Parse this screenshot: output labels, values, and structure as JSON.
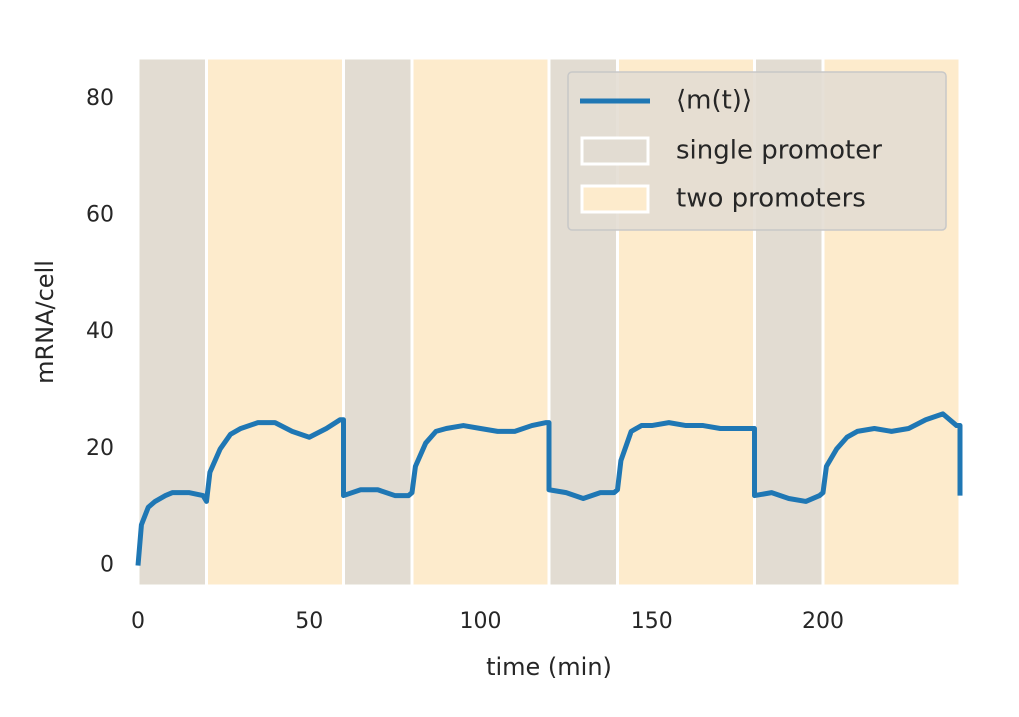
{
  "chart_data": {
    "type": "line",
    "xlabel": "time (min)",
    "ylabel": "mRNA/cell",
    "xlim": [
      0,
      240
    ],
    "ylim": [
      -3.5,
      87
    ],
    "xticks": [
      0,
      50,
      100,
      150,
      200
    ],
    "yticks": [
      0,
      20,
      40,
      60,
      80
    ],
    "legend": "upper right",
    "spans": [
      {
        "name": "single promoter",
        "color": "#e2dcd2",
        "intervals": [
          [
            0,
            20
          ],
          [
            60,
            80
          ],
          [
            120,
            140
          ],
          [
            180,
            200
          ]
        ]
      },
      {
        "name": "two promoters",
        "color": "#fdebcc",
        "intervals": [
          [
            20,
            60
          ],
          [
            80,
            120
          ],
          [
            140,
            180
          ],
          [
            200,
            240
          ]
        ]
      }
    ],
    "series": [
      {
        "name": "⟨m(t)⟩",
        "color": "#1f77b4",
        "x": [
          0,
          1,
          3,
          5,
          8,
          10,
          15,
          19,
          20,
          21,
          24,
          27,
          30,
          35,
          40,
          45,
          50,
          55,
          59,
          60,
          60,
          65,
          70,
          75,
          79,
          80,
          81,
          84,
          87,
          90,
          95,
          100,
          105,
          110,
          115,
          119,
          120,
          120,
          125,
          130,
          135,
          139,
          140,
          141,
          144,
          147,
          150,
          155,
          160,
          165,
          170,
          175,
          179,
          180,
          180,
          185,
          190,
          195,
          199,
          200,
          201,
          204,
          207,
          210,
          215,
          220,
          225,
          230,
          235,
          239,
          240,
          240
        ],
        "values": [
          0,
          7,
          10,
          11,
          12,
          12.5,
          12.5,
          12,
          11,
          16,
          20,
          22.5,
          23.5,
          24.5,
          24.5,
          23,
          22,
          23.5,
          25,
          25,
          12,
          13,
          13,
          12,
          12,
          12.5,
          17,
          21,
          23,
          23.5,
          24,
          23.5,
          23,
          23,
          24,
          24.5,
          24.5,
          13,
          12.5,
          11.5,
          12.5,
          12.5,
          13,
          18,
          23,
          24,
          24,
          24.5,
          24,
          24,
          23.5,
          23.5,
          23.5,
          23.5,
          12,
          12.5,
          11.5,
          11,
          12,
          12.5,
          17,
          20,
          22,
          23,
          23.5,
          23,
          23.5,
          25,
          26,
          24,
          24,
          12
        ]
      }
    ]
  }
}
